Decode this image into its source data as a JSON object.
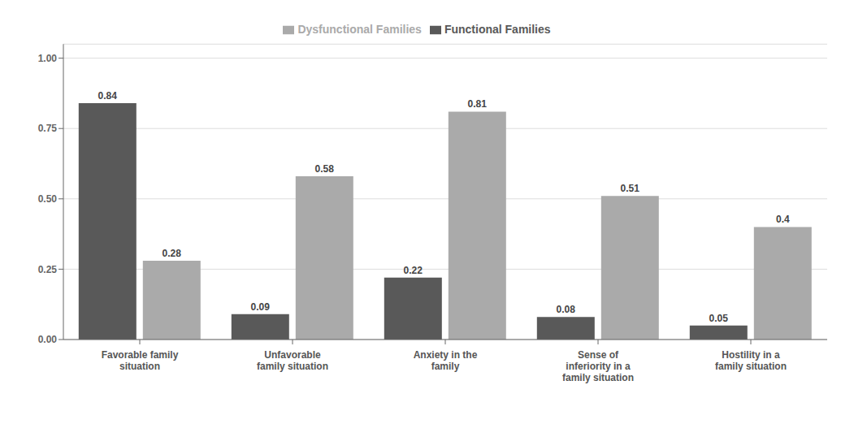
{
  "chart_data": {
    "type": "bar",
    "categories": [
      "Favorable family\nsituation",
      "Unfavorable\nfamily situation",
      "Anxiety in the\nfamily",
      "Sense of\ninferiority in a\nfamily situation",
      "Hostility in a\nfamily situation"
    ],
    "series": [
      {
        "name": "Functional Families",
        "color": "#595959",
        "values": [
          0.84,
          0.09,
          0.22,
          0.08,
          0.05
        ]
      },
      {
        "name": "Dysfunctional Families",
        "color": "#aaaaaa",
        "values": [
          0.28,
          0.58,
          0.81,
          0.51,
          0.4
        ]
      }
    ],
    "ylim": [
      0,
      1.05
    ],
    "yticks": [
      {
        "value": 0,
        "label": "0.00"
      },
      0.25,
      {
        "value": 0.5,
        "label": "0.50"
      },
      0.75,
      {
        "value": 1,
        "label": "1.00"
      }
    ],
    "grid": true,
    "legend": "top",
    "data_labels": true
  }
}
